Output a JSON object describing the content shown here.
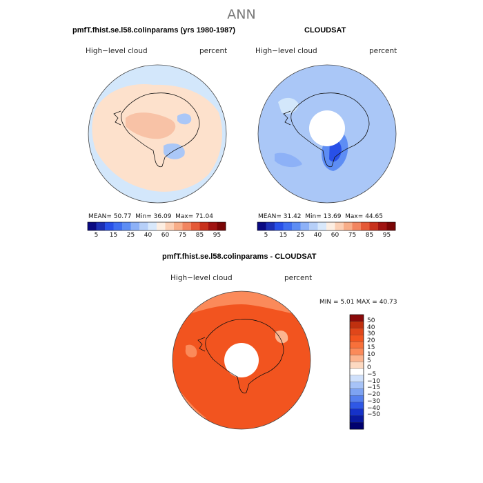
{
  "title": "ANN",
  "colors": {
    "ocean_light": "#d3e7fb",
    "ocean_mid": "#aac7f7",
    "land_peach": "#fde1cc",
    "land_salmon": "#f8c2a6",
    "deep_blue": "#2850e8",
    "diff_orange": "#f2541f",
    "diff_light": "#fb8a5a",
    "coast": "#111111"
  },
  "panels": [
    {
      "title": "pmfT.fhist.se.l58.colinparams (yrs 1980-1987)",
      "left_label": "High−level cloud",
      "right_label": "percent",
      "stats": {
        "mean_label": "MEAN=",
        "mean": "50.77",
        "min_label": "Min=",
        "min": "36.09",
        "max_label": "Max=",
        "max": "71.04"
      }
    },
    {
      "title": "CLOUDSAT",
      "left_label": "High−level cloud",
      "right_label": "percent",
      "stats": {
        "mean_label": "MEAN=",
        "mean": "31.42",
        "min_label": "Min=",
        "min": "13.69",
        "max_label": "Max=",
        "max": "44.65"
      }
    },
    {
      "title": "pmfT.fhist.se.l58.colinparams - CLOUDSAT",
      "left_label": "High−level cloud",
      "right_label": "percent",
      "stats": {
        "min_label": "MIN =",
        "min": "5.01",
        "max_label": "MAX =",
        "max": "40.73"
      }
    }
  ],
  "chart_data": [
    {
      "type": "heatmap",
      "title": "pmfT.fhist.se.l58.colinparams (yrs 1980-1987)",
      "projection": "south-polar-stereographic",
      "units": "percent",
      "colorbar": {
        "orientation": "horizontal",
        "levels": [
          5,
          10,
          15,
          20,
          25,
          30,
          40,
          50,
          60,
          70,
          75,
          80,
          85,
          90,
          95
        ],
        "tick_labels": [
          "5",
          "15",
          "25",
          "40",
          "60",
          "75",
          "85",
          "95"
        ],
        "colors": [
          "#0a0a82",
          "#1c2fb4",
          "#2850e8",
          "#3f6ef0",
          "#5d8df4",
          "#8db1f7",
          "#b6cff8",
          "#d8e8fb",
          "#fdeee2",
          "#fccfb4",
          "#f8ad88",
          "#f28560",
          "#e55a37",
          "#c8311c",
          "#a01412",
          "#7a0606"
        ]
      },
      "stats": {
        "mean": 50.77,
        "min": 36.09,
        "max": 71.04
      }
    },
    {
      "type": "heatmap",
      "title": "CLOUDSAT",
      "projection": "south-polar-stereographic",
      "units": "percent",
      "colorbar": {
        "orientation": "horizontal",
        "levels": [
          5,
          10,
          15,
          20,
          25,
          30,
          40,
          50,
          60,
          70,
          75,
          80,
          85,
          90,
          95
        ],
        "tick_labels": [
          "5",
          "15",
          "25",
          "40",
          "60",
          "75",
          "85",
          "95"
        ],
        "colors": [
          "#0a0a82",
          "#1c2fb4",
          "#2850e8",
          "#3f6ef0",
          "#5d8df4",
          "#8db1f7",
          "#b6cff8",
          "#d8e8fb",
          "#fdeee2",
          "#fccfb4",
          "#f8ad88",
          "#f28560",
          "#e55a37",
          "#c8311c",
          "#a01412",
          "#7a0606"
        ]
      },
      "stats": {
        "mean": 31.42,
        "min": 13.69,
        "max": 44.65
      }
    },
    {
      "type": "heatmap",
      "title": "pmfT.fhist.se.l58.colinparams - CLOUDSAT",
      "projection": "south-polar-stereographic",
      "units": "percent",
      "colorbar": {
        "orientation": "vertical",
        "levels": [
          50,
          40,
          30,
          20,
          15,
          10,
          5,
          0,
          -5,
          -10,
          -15,
          -20,
          -30,
          -40,
          -50
        ],
        "tick_labels": [
          "50",
          "40",
          "30",
          "20",
          "15",
          "10",
          "5",
          "0",
          "−5",
          "−10",
          "−15",
          "−20",
          "−30",
          "−40",
          "−50"
        ],
        "colors": [
          "#8a0a0a",
          "#c0300f",
          "#e0461a",
          "#f2541f",
          "#f8703a",
          "#fb8a5a",
          "#fcb48f",
          "#fdd9c1",
          "#ffffff",
          "#cfe0fb",
          "#a7c3f7",
          "#7ea3f2",
          "#557fee",
          "#2f58e6",
          "#1632c8",
          "#0a1aa0",
          "#00006e"
        ]
      },
      "stats": {
        "min": 5.01,
        "max": 40.73
      }
    }
  ]
}
